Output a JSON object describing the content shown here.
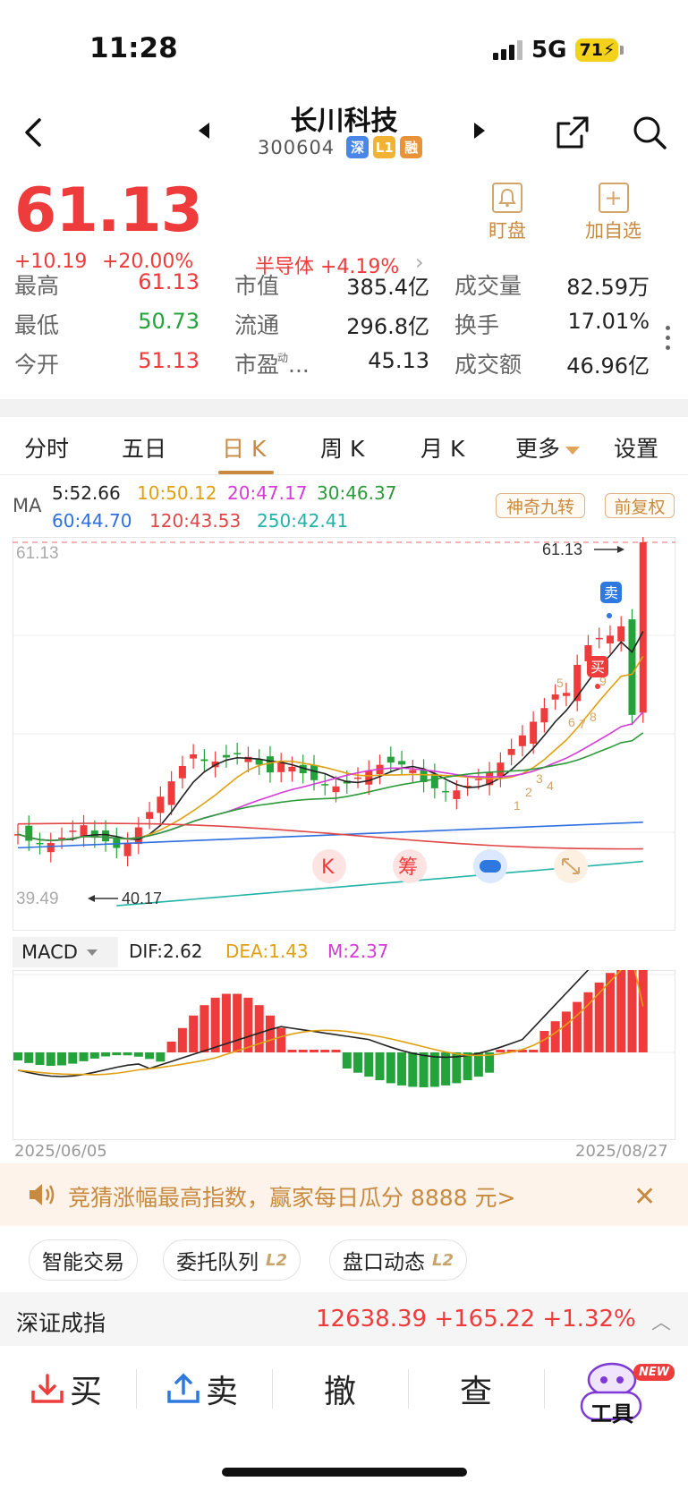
{
  "status": {
    "time": "11:28",
    "network": "5G",
    "battery": "71"
  },
  "stock": {
    "name": "长川科技",
    "code": "300604",
    "tags": [
      {
        "text": "深",
        "color": "#4a86e8"
      },
      {
        "text": "L1",
        "color": "#f2b233"
      },
      {
        "text": "融",
        "color": "#e8923a"
      }
    ],
    "price": "61.13",
    "change": "+10.19",
    "change_pct": "+20.00%",
    "sector": "半导体 +4.19%"
  },
  "actions": {
    "watch": "盯盘",
    "add": "加自选"
  },
  "stats": [
    {
      "label": "最高",
      "value": "61.13",
      "tone": "red"
    },
    {
      "label": "最低",
      "value": "50.73",
      "tone": "green"
    },
    {
      "label": "今开",
      "value": "51.13",
      "tone": "red"
    },
    {
      "label": "市值",
      "value": "385.4亿",
      "tone": "dark"
    },
    {
      "label": "流通",
      "value": "296.8亿",
      "tone": "dark"
    },
    {
      "label": "市盈",
      "label_sup": "动",
      "label_suffix": "...",
      "value": "45.13",
      "tone": "dark"
    },
    {
      "label": "成交量",
      "value": "82.59万",
      "tone": "dark"
    },
    {
      "label": "换手",
      "value": "17.01%",
      "tone": "dark"
    },
    {
      "label": "成交额",
      "value": "46.96亿",
      "tone": "dark"
    }
  ],
  "tabs": [
    "分时",
    "五日",
    "日 K",
    "周 K",
    "月 K",
    "更多",
    "设置"
  ],
  "active_tab": "日 K",
  "ma_legend": {
    "label": "MA",
    "items": [
      {
        "text": "5:52.66",
        "color": "#222222"
      },
      {
        "text": "10:50.12",
        "color": "#e0a012"
      },
      {
        "text": "20:47.17",
        "color": "#d63ad6"
      },
      {
        "text": "30:46.37",
        "color": "#2b9a3a"
      },
      {
        "text": "60:44.70",
        "color": "#2e6fe0"
      },
      {
        "text": "120:43.53",
        "color": "#e04646"
      },
      {
        "text": "250:42.41",
        "color": "#22b3a8"
      }
    ],
    "pill_signal": "神奇九转",
    "pill_adjust": "前复权"
  },
  "kline": {
    "max_label": "61.13",
    "min_label": "39.49",
    "high_marker": "61.13",
    "low_marker": "40.17",
    "badges": {
      "sell": "卖",
      "buy": "买",
      "k": "K",
      "chip": "筹"
    },
    "nine_turn_labels": [
      "1",
      "2",
      "3",
      "4",
      "5",
      "6",
      "7",
      "8",
      "9"
    ]
  },
  "macd": {
    "name": "MACD",
    "dif": "DIF:2.62",
    "dea": "DEA:1.43",
    "m": "M:2.37",
    "colors": {
      "dif": "#222222",
      "dea": "#e0a012",
      "m": "#d63ad6"
    }
  },
  "dates": {
    "start": "2025/06/05",
    "end": "2025/08/27"
  },
  "banner": {
    "text": "竞猜涨幅最高指数，赢家每日瓜分 8888 元>"
  },
  "chips": [
    {
      "label": "智能交易",
      "badge": ""
    },
    {
      "label": "委托队列",
      "badge": "L2"
    },
    {
      "label": "盘口动态",
      "badge": "L2"
    }
  ],
  "index": {
    "name": "深证成指",
    "value": "12638.39 +165.22 +1.32%"
  },
  "toolbar": {
    "buy": "买",
    "sell": "卖",
    "cancel": "撤",
    "query": "查",
    "tools": "工具",
    "tools_badge": "NEW"
  }
}
